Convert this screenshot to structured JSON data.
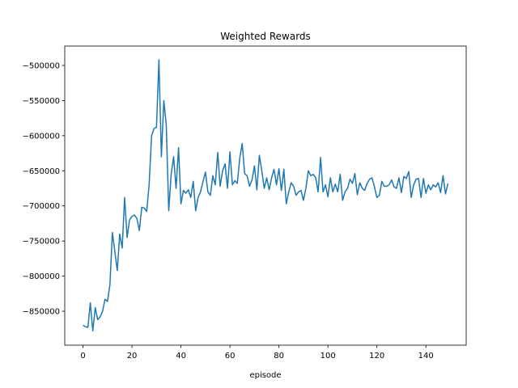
{
  "chart_data": {
    "type": "line",
    "title": "Weighted Rewards",
    "x_label": "episode",
    "x": [
      0,
      1,
      2,
      3,
      4,
      5,
      6,
      7,
      8,
      9,
      10,
      11,
      12,
      13,
      14,
      15,
      16,
      17,
      18,
      19,
      20,
      21,
      22,
      23,
      24,
      25,
      26,
      27,
      28,
      29,
      30,
      31,
      32,
      33,
      34,
      35,
      36,
      37,
      38,
      39,
      40,
      41,
      42,
      43,
      44,
      45,
      46,
      47,
      48,
      49,
      50,
      51,
      52,
      53,
      54,
      55,
      56,
      57,
      58,
      59,
      60,
      61,
      62,
      63,
      64,
      65,
      66,
      67,
      68,
      69,
      70,
      71,
      72,
      73,
      74,
      75,
      76,
      77,
      78,
      79,
      80,
      81,
      82,
      83,
      84,
      85,
      86,
      87,
      88,
      89,
      90,
      91,
      92,
      93,
      94,
      95,
      96,
      97,
      98,
      99,
      100,
      101,
      102,
      103,
      104,
      105,
      106,
      107,
      108,
      109,
      110,
      111,
      112,
      113,
      114,
      115,
      116,
      117,
      118,
      119,
      120,
      121,
      122,
      123,
      124,
      125,
      126,
      127,
      128,
      129,
      130,
      131,
      132,
      133,
      134,
      135,
      136,
      137,
      138,
      139,
      140,
      141,
      142,
      143,
      144,
      145,
      146,
      147,
      148,
      149
    ],
    "series": [
      {
        "color": "#1f77b4",
        "values": [
          -870000,
          -872000,
          -873000,
          -838000,
          -878000,
          -845000,
          -862000,
          -858000,
          -850000,
          -833000,
          -836000,
          -812000,
          -738000,
          -765000,
          -792000,
          -740000,
          -760000,
          -688000,
          -745000,
          -720000,
          -715000,
          -713000,
          -718000,
          -735000,
          -702000,
          -703000,
          -708000,
          -670000,
          -600000,
          -590000,
          -588000,
          -492000,
          -630000,
          -550000,
          -585000,
          -707000,
          -655000,
          -630000,
          -675000,
          -617000,
          -697000,
          -678000,
          -682000,
          -677000,
          -688000,
          -665000,
          -707000,
          -688000,
          -680000,
          -665000,
          -652000,
          -680000,
          -685000,
          -657000,
          -670000,
          -624000,
          -672000,
          -650000,
          -640000,
          -675000,
          -623000,
          -670000,
          -664000,
          -668000,
          -632000,
          -611000,
          -654000,
          -657000,
          -672000,
          -663000,
          -643000,
          -677000,
          -628000,
          -650000,
          -675000,
          -660000,
          -677000,
          -660000,
          -648000,
          -670000,
          -647000,
          -678000,
          -648000,
          -697000,
          -680000,
          -667000,
          -672000,
          -685000,
          -680000,
          -678000,
          -692000,
          -675000,
          -650000,
          -657000,
          -655000,
          -660000,
          -680000,
          -631000,
          -680000,
          -670000,
          -687000,
          -660000,
          -680000,
          -669000,
          -680000,
          -655000,
          -692000,
          -680000,
          -675000,
          -662000,
          -668000,
          -654000,
          -684000,
          -667000,
          -675000,
          -678000,
          -668000,
          -662000,
          -660000,
          -673000,
          -688000,
          -685000,
          -665000,
          -672000,
          -672000,
          -670000,
          -663000,
          -673000,
          -675000,
          -660000,
          -681000,
          -658000,
          -661000,
          -651000,
          -688000,
          -670000,
          -662000,
          -661000,
          -688000,
          -661000,
          -682000,
          -670000,
          -677000,
          -670000,
          -673000,
          -667000,
          -681000,
          -657000,
          -683000,
          -668000
        ]
      }
    ],
    "xlim": [
      -7.45,
      156.45
    ],
    "xticks": [
      0,
      20,
      40,
      60,
      80,
      100,
      120,
      140
    ],
    "ylim": [
      -898300,
      -472400
    ],
    "yticks": [
      {
        "value": -850000,
        "label": "−850000"
      },
      {
        "value": -800000,
        "label": "−800000"
      },
      {
        "value": -750000,
        "label": "−750000"
      },
      {
        "value": -700000,
        "label": "−700000"
      },
      {
        "value": -650000,
        "label": "−650000"
      },
      {
        "value": -600000,
        "label": "−600000"
      },
      {
        "value": -550000,
        "label": "−550000"
      },
      {
        "value": -500000,
        "label": "−500000"
      }
    ]
  }
}
